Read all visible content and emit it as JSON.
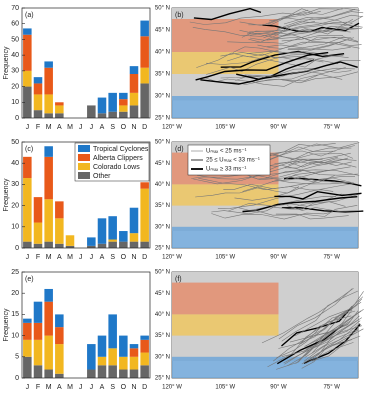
{
  "chart_data": [
    {
      "type": "bar",
      "stacked": true,
      "title": "(a)",
      "y_label": "Frequency",
      "categories": [
        "J",
        "F",
        "M",
        "A",
        "M",
        "J",
        "J",
        "A",
        "S",
        "O",
        "N",
        "D"
      ],
      "ylim": [
        0,
        70
      ],
      "yticks": [
        0,
        10,
        20,
        30,
        40,
        50,
        60,
        70
      ],
      "series": [
        {
          "name": "Tropical Cyclones",
          "color": "#1f78c8",
          "values": [
            4,
            4,
            4,
            0,
            0,
            0,
            0,
            10,
            12,
            4,
            5,
            10
          ]
        },
        {
          "name": "Alberta Clippers",
          "color": "#e8591a",
          "values": [
            23,
            7,
            17,
            2,
            0,
            0,
            0,
            0,
            0,
            4,
            12,
            20
          ]
        },
        {
          "name": "Colorado Lows",
          "color": "#f2b720",
          "values": [
            10,
            10,
            12,
            5,
            0,
            0,
            0,
            0,
            0,
            4,
            8,
            10
          ]
        },
        {
          "name": "Other",
          "color": "#666666",
          "values": [
            20,
            5,
            3,
            3,
            0,
            0,
            8,
            3,
            4,
            4,
            8,
            22
          ]
        }
      ]
    },
    {
      "type": "bar",
      "stacked": true,
      "title": "(c)",
      "y_label": "Frequency",
      "legend": "upper right",
      "categories": [
        "J",
        "F",
        "M",
        "A",
        "M",
        "J",
        "J",
        "A",
        "S",
        "O",
        "N",
        "D"
      ],
      "ylim": [
        0,
        50
      ],
      "yticks": [
        0,
        10,
        20,
        30,
        40,
        50
      ],
      "series": [
        {
          "name": "Tropical Cyclones",
          "color": "#1f78c8",
          "values": [
            0,
            0,
            5,
            0,
            0,
            0,
            4,
            12,
            11,
            5,
            12,
            0
          ]
        },
        {
          "name": "Alberta Clippers",
          "color": "#e8591a",
          "values": [
            10,
            12,
            20,
            8,
            0,
            0,
            0,
            0,
            0,
            0,
            0,
            3
          ]
        },
        {
          "name": "Colorado Lows",
          "color": "#f2b720",
          "values": [
            30,
            10,
            20,
            12,
            5,
            0,
            0,
            0,
            1,
            0,
            4,
            25
          ]
        },
        {
          "name": "Other",
          "color": "#666666",
          "values": [
            3,
            2,
            3,
            2,
            1,
            0,
            1,
            2,
            3,
            3,
            3,
            3
          ]
        }
      ]
    },
    {
      "type": "bar",
      "stacked": true,
      "title": "(e)",
      "y_label": "Frequency",
      "categories": [
        "J",
        "F",
        "M",
        "A",
        "M",
        "J",
        "J",
        "A",
        "S",
        "O",
        "N",
        "D"
      ],
      "ylim": [
        0,
        25
      ],
      "yticks": [
        0,
        5,
        10,
        15,
        20,
        25
      ],
      "series": [
        {
          "name": "Tropical Cyclones",
          "color": "#1f78c8",
          "values": [
            1,
            5,
            3,
            3,
            0,
            0,
            6,
            5,
            8,
            5,
            1,
            1
          ]
        },
        {
          "name": "Alberta Clippers",
          "color": "#e8591a",
          "values": [
            4,
            4,
            8,
            4,
            0,
            0,
            0,
            0,
            0,
            0,
            2,
            3
          ]
        },
        {
          "name": "Colorado Lows",
          "color": "#f2b720",
          "values": [
            4,
            6,
            8,
            7,
            0,
            0,
            0,
            2,
            4,
            3,
            3,
            3
          ]
        },
        {
          "name": "Other",
          "color": "#666666",
          "values": [
            5,
            3,
            2,
            1,
            0,
            0,
            2,
            3,
            3,
            2,
            2,
            3
          ]
        }
      ]
    }
  ],
  "maps": {
    "panels": [
      "(b)",
      "(d)",
      "(f)"
    ],
    "lon_ticks": [
      "120° W",
      "105° W",
      "90° W",
      "75° W"
    ],
    "lat_ticks": [
      "25° N",
      "30° N",
      "35° N",
      "40° N",
      "45° N",
      "50° N"
    ],
    "legend": [
      "Uₘₐₓ < 25 ms⁻¹",
      "25 ≤ Uₘₐₓ < 33 ms⁻¹",
      "Uₘₐₓ ≥ 33 ms⁻¹"
    ]
  }
}
